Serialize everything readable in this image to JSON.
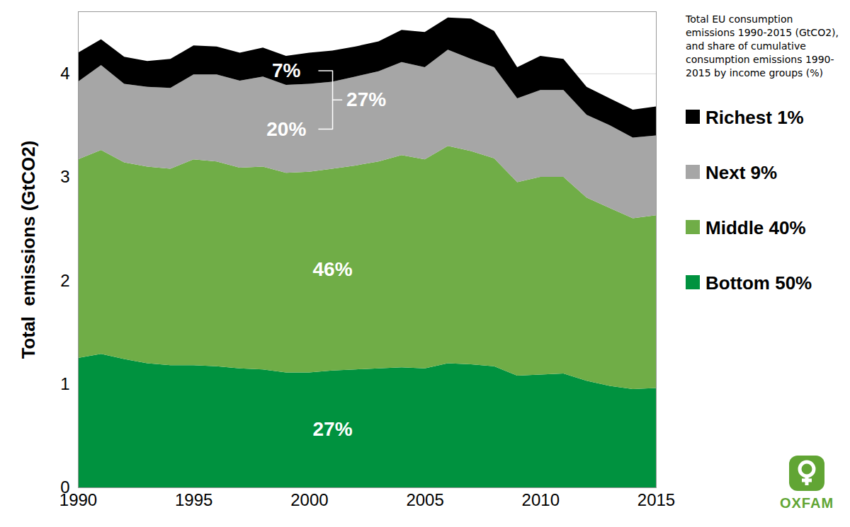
{
  "chart_data": {
    "type": "area",
    "stacked": true,
    "title": "Total EU consumption emissions 1990-2015 (GtCO2), and share of cumulative consumption emissions 1990-2015 by income groups (%)",
    "y_label": "Total  emissions (GtCO2)",
    "x": [
      1990,
      1991,
      1992,
      1993,
      1994,
      1995,
      1996,
      1997,
      1998,
      1999,
      2000,
      2001,
      2002,
      2003,
      2004,
      2005,
      2006,
      2007,
      2008,
      2009,
      2010,
      2011,
      2012,
      2013,
      2014,
      2015
    ],
    "series": [
      {
        "name": "Bottom 50%",
        "color": "#00923f",
        "share_label": "27%",
        "values": [
          1.25,
          1.29,
          1.24,
          1.2,
          1.18,
          1.18,
          1.17,
          1.15,
          1.14,
          1.11,
          1.11,
          1.13,
          1.14,
          1.15,
          1.16,
          1.15,
          1.2,
          1.19,
          1.17,
          1.08,
          1.09,
          1.1,
          1.03,
          0.98,
          0.95,
          0.96
        ]
      },
      {
        "name": "Middle 40%",
        "color": "#70ad47",
        "share_label": "46%",
        "values": [
          1.92,
          1.97,
          1.9,
          1.9,
          1.9,
          1.99,
          1.98,
          1.94,
          1.96,
          1.93,
          1.94,
          1.95,
          1.97,
          2.0,
          2.05,
          2.02,
          2.1,
          2.06,
          2.01,
          1.87,
          1.91,
          1.9,
          1.77,
          1.72,
          1.65,
          1.67
        ]
      },
      {
        "name": "Next 9%",
        "color": "#a6a6a6",
        "share_label": "20%",
        "values": [
          0.75,
          0.82,
          0.76,
          0.77,
          0.78,
          0.82,
          0.84,
          0.84,
          0.87,
          0.85,
          0.85,
          0.84,
          0.86,
          0.87,
          0.9,
          0.89,
          0.93,
          0.89,
          0.88,
          0.81,
          0.84,
          0.84,
          0.8,
          0.8,
          0.78,
          0.77
        ]
      },
      {
        "name": "Richest 1%",
        "color": "#000000",
        "share_label": "7%",
        "values": [
          0.28,
          0.25,
          0.26,
          0.25,
          0.28,
          0.28,
          0.27,
          0.27,
          0.28,
          0.28,
          0.3,
          0.3,
          0.29,
          0.29,
          0.31,
          0.34,
          0.31,
          0.39,
          0.35,
          0.3,
          0.33,
          0.3,
          0.27,
          0.26,
          0.27,
          0.28
        ]
      }
    ],
    "annotations": [
      {
        "text": "27%"
      }
    ],
    "logo": "OXFAM",
    "xlim": [
      1990,
      2015
    ],
    "xticks": [
      1990,
      1995,
      2000,
      2005,
      2010,
      2015
    ],
    "ylim": [
      0,
      4.6
    ],
    "yticks": [
      0,
      1,
      2,
      3,
      4
    ],
    "grid": true,
    "legend": "right"
  }
}
